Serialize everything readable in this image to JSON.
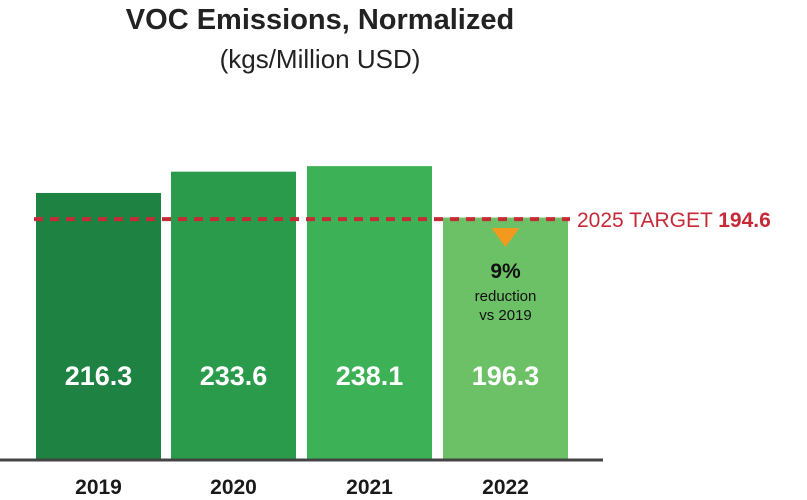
{
  "chart_data": {
    "type": "bar",
    "title": "VOC Emissions, Normalized",
    "subtitle": "(kgs/Million USD)",
    "categories": [
      "2019",
      "2020",
      "2021",
      "2022"
    ],
    "values": [
      216.3,
      233.6,
      238.1,
      196.3
    ],
    "value_labels": [
      "216.3",
      "233.6",
      "238.1",
      "196.3"
    ],
    "bar_colors": [
      "#1e8242",
      "#2a9a4b",
      "#3db156",
      "#6cc066"
    ],
    "ylim": [
      0,
      264
    ],
    "grid": false,
    "target": {
      "value": 194.6,
      "label_prefix": "2025 TARGET ",
      "label_value": "194.6",
      "color": "#c62a36"
    },
    "annotation": {
      "category": "2022",
      "marker": "down-triangle",
      "marker_color": "#f39a1e",
      "headline": "9%",
      "line1": "reduction",
      "line2": "vs 2019"
    }
  }
}
